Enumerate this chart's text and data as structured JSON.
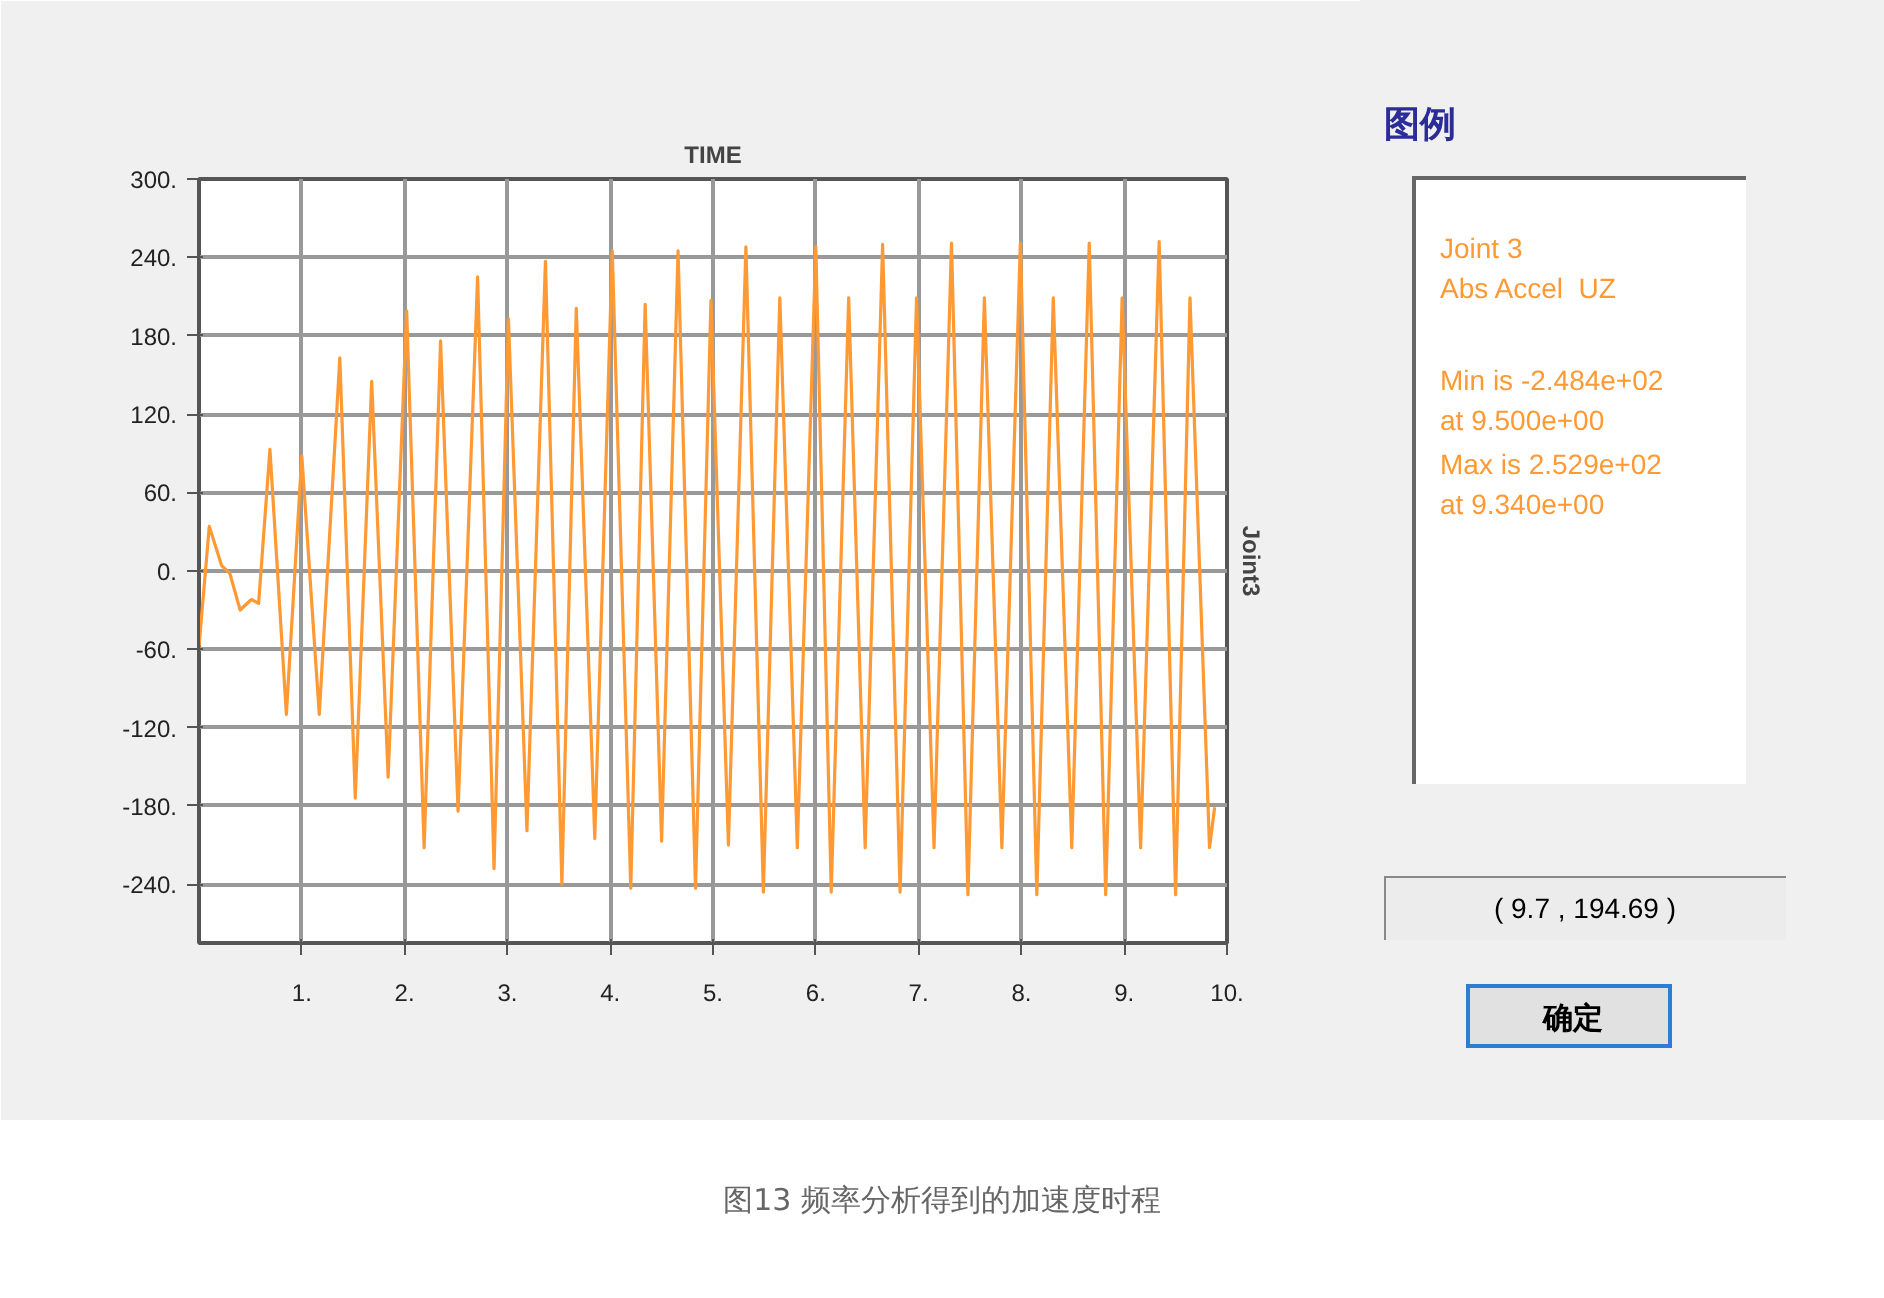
{
  "chart_data": {
    "type": "line",
    "title": "TIME",
    "ylabel": "Joint3",
    "legend_title": "图例",
    "annotations": [
      "Joint 3",
      "Abs Accel  UZ",
      "Min is -2.484e+02",
      "at 9.500e+00",
      "Max is 2.529e+02",
      "at 9.340e+00",
      "( 9.7 , 194.69 )",
      "确定",
      "图13 频率分析得到的加速度时程"
    ],
    "x": [
      0,
      0.1,
      0.22,
      0.3,
      0.4,
      0.51,
      0.58,
      0.69,
      0.85,
      1.0,
      1.17,
      1.37,
      1.52,
      1.68,
      1.84,
      2.02,
      2.19,
      2.35,
      2.52,
      2.71,
      2.87,
      3.01,
      3.19,
      3.37,
      3.53,
      3.67,
      3.85,
      4.02,
      4.2,
      4.34,
      4.5,
      4.66,
      4.83,
      4.98,
      5.15,
      5.32,
      5.49,
      5.65,
      5.82,
      6.0,
      6.15,
      6.32,
      6.48,
      6.65,
      6.82,
      6.98,
      7.15,
      7.32,
      7.48,
      7.64,
      7.81,
      7.99,
      8.15,
      8.31,
      8.49,
      8.66,
      8.82,
      8.98,
      9.16,
      9.34,
      9.5,
      9.64,
      9.83,
      9.88
    ],
    "series": [
      {
        "color": "#ff9933",
        "values": [
          -58,
          34,
          4,
          -2,
          -30,
          -22,
          -25,
          93,
          -110,
          88,
          -110,
          163,
          -174,
          145,
          -158,
          199,
          -212,
          176,
          -184,
          225,
          -228,
          193,
          -199,
          237,
          -240,
          201,
          -205,
          245,
          -243,
          204,
          -207,
          245,
          -243,
          207,
          -210,
          248,
          -246,
          209,
          -212,
          248,
          -246,
          209,
          -212,
          250,
          -246,
          209,
          -212,
          251,
          -248,
          209,
          -212,
          251,
          -248,
          209,
          -212,
          251,
          -248,
          209,
          -212,
          252,
          -248,
          209,
          -212,
          -181
        ]
      }
    ],
    "xlim": [
      0,
      10
    ],
    "ylim": [
      -285,
      300
    ],
    "xticks": [
      {
        "value": 1,
        "label": "1."
      },
      {
        "value": 2,
        "label": "2."
      },
      {
        "value": 3,
        "label": "3."
      },
      {
        "value": 4,
        "label": "4."
      },
      {
        "value": 5,
        "label": "5."
      },
      {
        "value": 6,
        "label": "6."
      },
      {
        "value": 7,
        "label": "7."
      },
      {
        "value": 8,
        "label": "8."
      },
      {
        "value": 9,
        "label": "9."
      },
      {
        "value": 10,
        "label": "10."
      }
    ],
    "yticks": [
      {
        "value": -240,
        "label": "-240."
      },
      {
        "value": -180,
        "label": "-180."
      },
      {
        "value": -120,
        "label": "-120."
      },
      {
        "value": -60,
        "label": "-60."
      },
      {
        "value": 0,
        "label": "0."
      },
      {
        "value": 60,
        "label": "60."
      },
      {
        "value": 120,
        "label": "120."
      },
      {
        "value": 180,
        "label": "180."
      },
      {
        "value": 240,
        "label": "240."
      },
      {
        "value": 300,
        "label": "300."
      }
    ],
    "grid": true
  }
}
